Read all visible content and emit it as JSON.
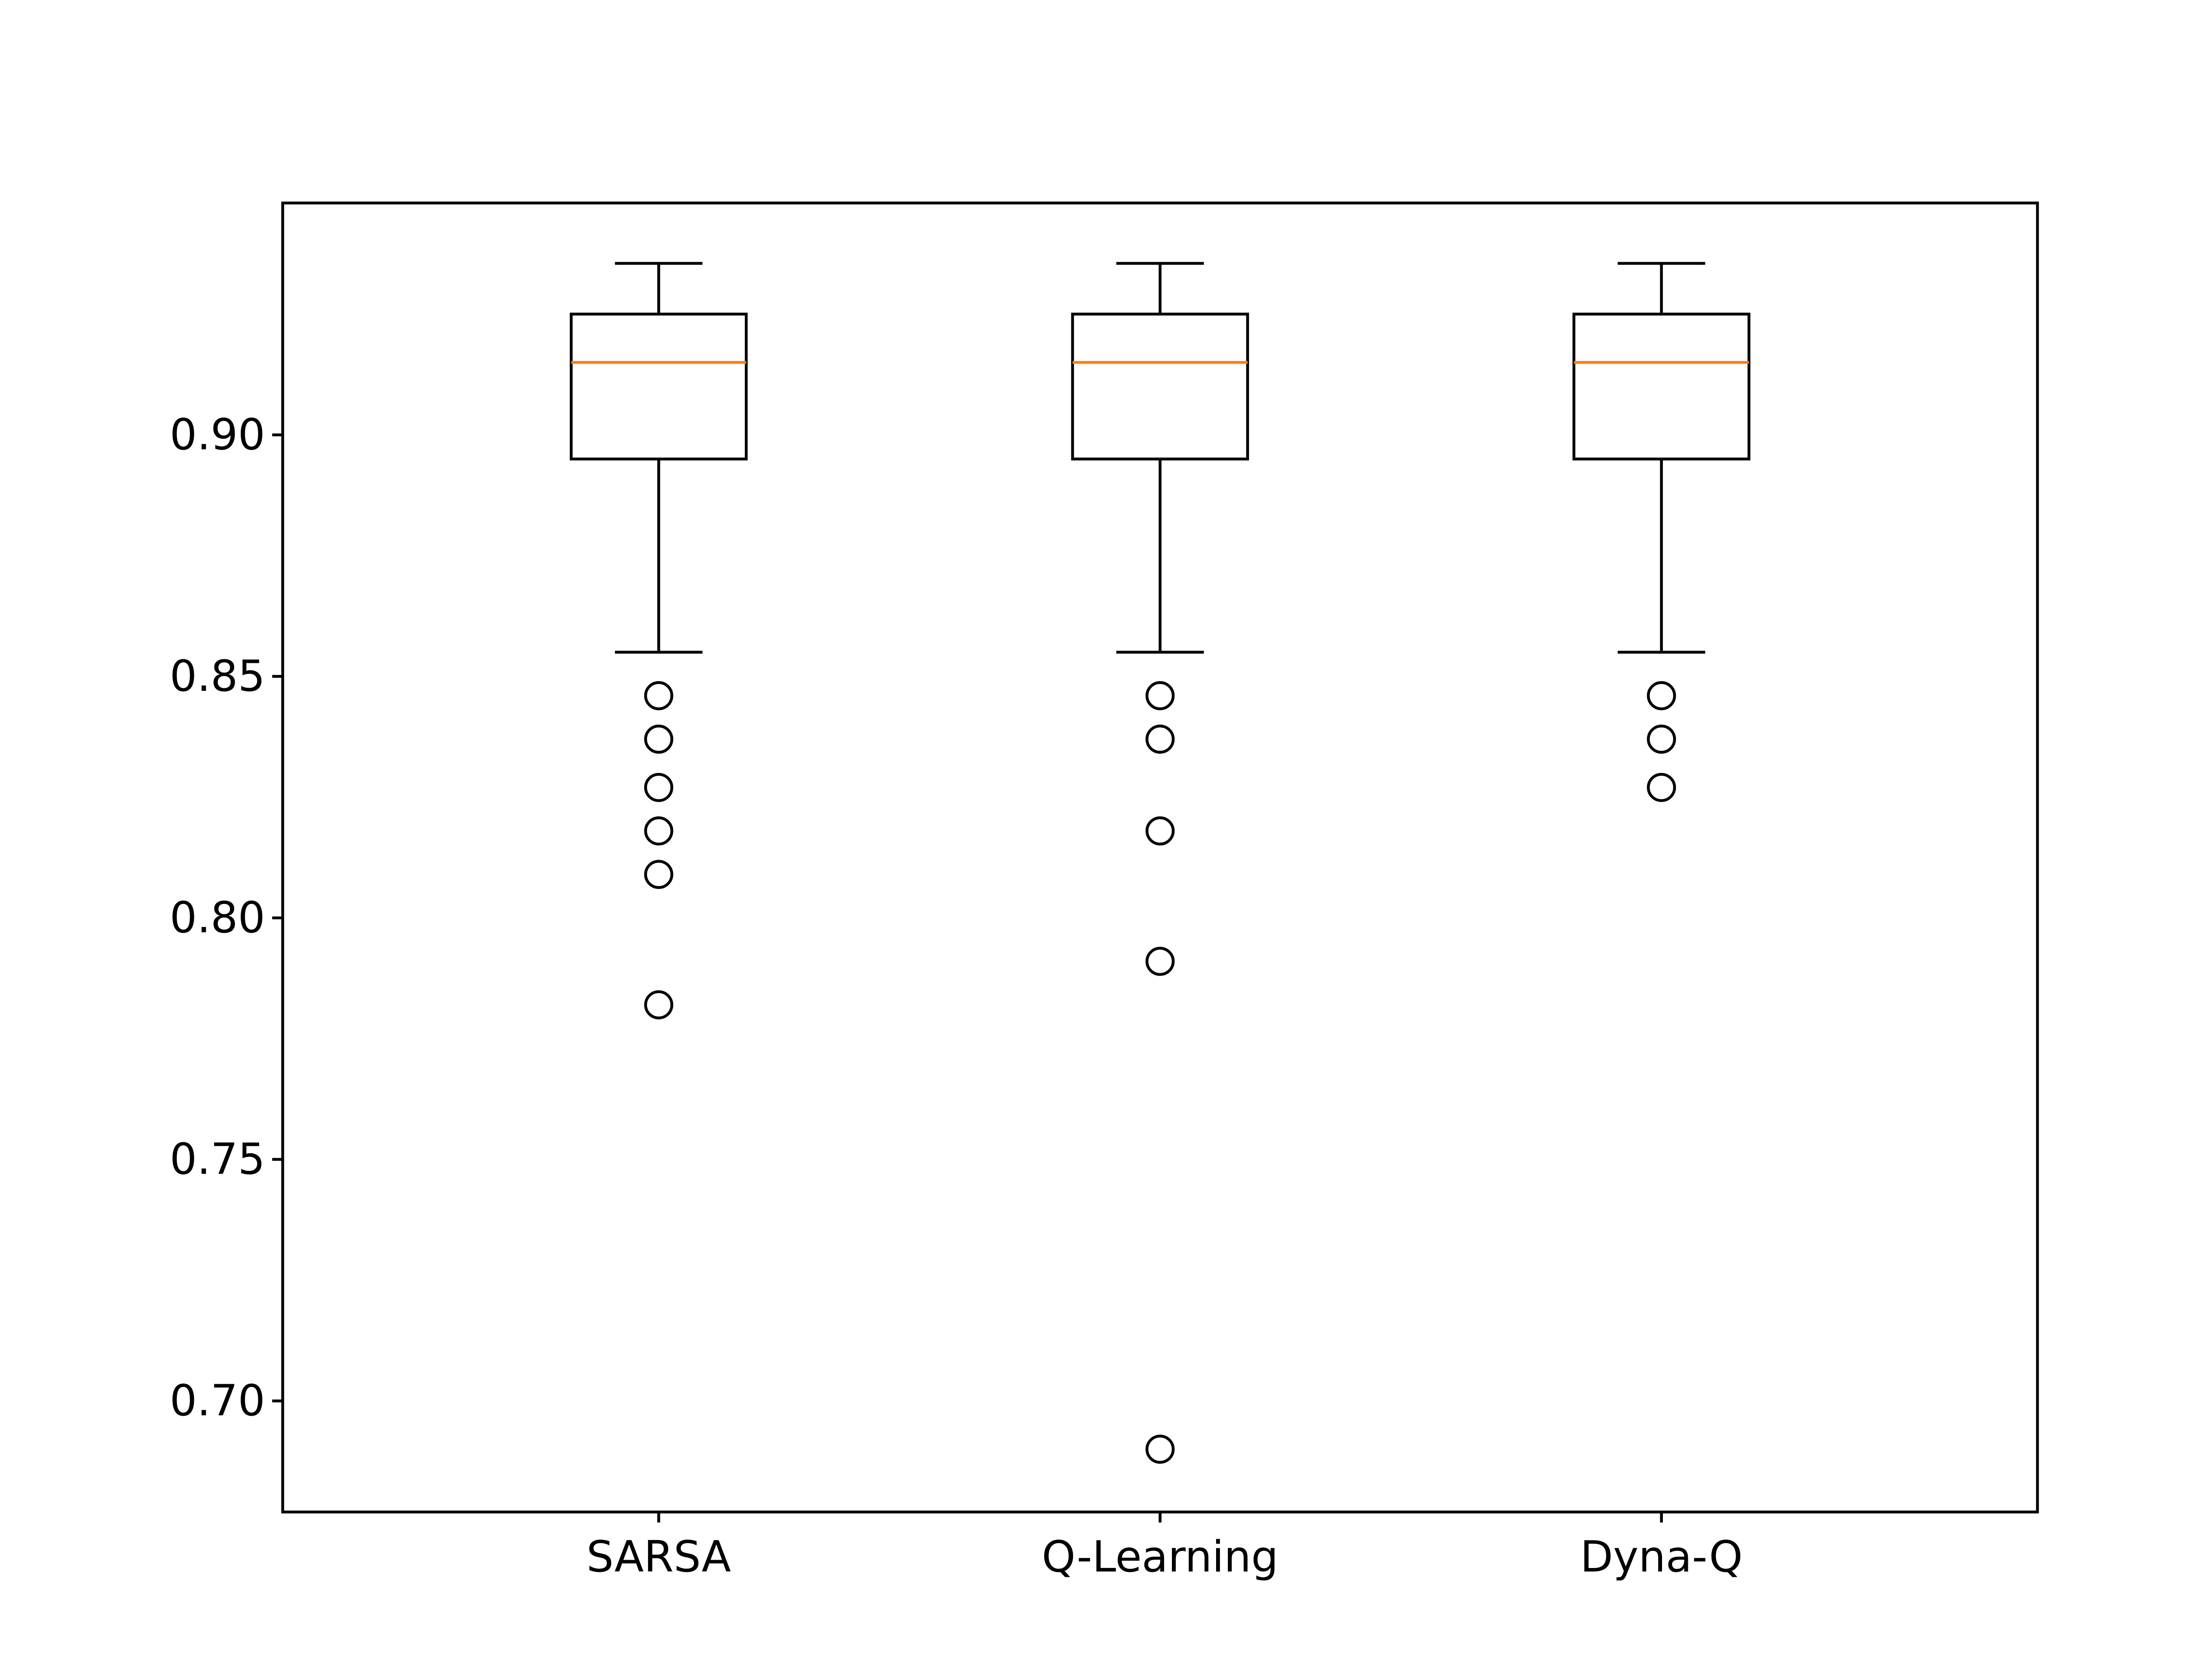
{
  "chart_data": {
    "type": "box",
    "title": "",
    "xlabel": "",
    "ylabel": "",
    "categories": [
      "SARSA",
      "Q-Learning",
      "Dyna-Q"
    ],
    "ylim": [
      0.677,
      0.948
    ],
    "yticks": [
      "0.70",
      "0.75",
      "0.80",
      "0.85",
      "0.90"
    ],
    "grid": false,
    "boxes": [
      {
        "name": "SARSA",
        "whisker_low": 0.855,
        "q1": 0.895,
        "median": 0.915,
        "q3": 0.925,
        "whisker_high": 0.9355,
        "outliers": [
          0.846,
          0.837,
          0.827,
          0.818,
          0.809,
          0.782
        ]
      },
      {
        "name": "Q-Learning",
        "whisker_low": 0.855,
        "q1": 0.895,
        "median": 0.915,
        "q3": 0.925,
        "whisker_high": 0.9355,
        "outliers": [
          0.846,
          0.837,
          0.818,
          0.791,
          0.69
        ]
      },
      {
        "name": "Dyna-Q",
        "whisker_low": 0.855,
        "q1": 0.895,
        "median": 0.915,
        "q3": 0.925,
        "whisker_high": 0.9355,
        "outliers": [
          0.846,
          0.837,
          0.827
        ]
      }
    ],
    "colors": {
      "box": "#000000",
      "median": "#ff7f0e",
      "outlier": "#000000"
    }
  }
}
